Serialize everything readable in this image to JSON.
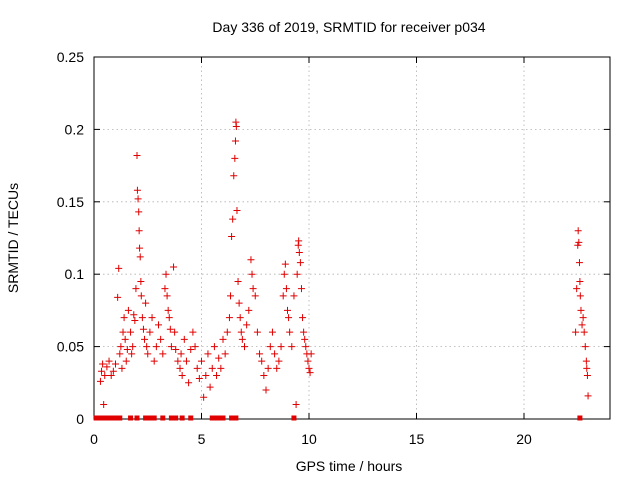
{
  "chart_data": {
    "type": "scatter",
    "title": "Day 336 of 2019, SRMTID for receiver p034",
    "xlabel": "GPS time / hours",
    "ylabel": "SRMTID / TECUs",
    "xlim": [
      0,
      24
    ],
    "ylim": [
      0,
      0.25
    ],
    "xticks": [
      0,
      5,
      10,
      15,
      20
    ],
    "xtick_labels": [
      "0",
      "5",
      "10",
      "15",
      "20"
    ],
    "yticks": [
      0,
      0.05,
      0.1,
      0.15,
      0.2,
      0.25
    ],
    "ytick_labels": [
      "0",
      "0.05",
      "0.1",
      "0.15",
      "0.2",
      "0.25"
    ],
    "grid": true,
    "marker": "plus",
    "color": "#e00000",
    "series": [
      {
        "name": "SRMTID",
        "points": [
          [
            0.3,
            0.026
          ],
          [
            0.35,
            0.033
          ],
          [
            0.4,
            0.038
          ],
          [
            0.45,
            0.01
          ],
          [
            0.5,
            0.03
          ],
          [
            0.6,
            0.036
          ],
          [
            0.7,
            0.04
          ],
          [
            0.8,
            0.03
          ],
          [
            0.9,
            0.033
          ],
          [
            1.0,
            0.038
          ],
          [
            1.1,
            0.084
          ],
          [
            1.15,
            0.104
          ],
          [
            1.2,
            0.045
          ],
          [
            1.25,
            0.05
          ],
          [
            1.3,
            0.035
          ],
          [
            1.35,
            0.06
          ],
          [
            1.4,
            0.07
          ],
          [
            1.45,
            0.055
          ],
          [
            1.5,
            0.04
          ],
          [
            1.55,
            0.048
          ],
          [
            1.6,
            0.075
          ],
          [
            1.7,
            0.06
          ],
          [
            1.75,
            0.045
          ],
          [
            1.8,
            0.05
          ],
          [
            1.85,
            0.072
          ],
          [
            1.9,
            0.068
          ],
          [
            1.95,
            0.09
          ],
          [
            2.0,
            0.182
          ],
          [
            2.02,
            0.158
          ],
          [
            2.05,
            0.152
          ],
          [
            2.08,
            0.143
          ],
          [
            2.1,
            0.13
          ],
          [
            2.12,
            0.118
          ],
          [
            2.15,
            0.112
          ],
          [
            2.18,
            0.095
          ],
          [
            2.2,
            0.085
          ],
          [
            2.25,
            0.07
          ],
          [
            2.3,
            0.062
          ],
          [
            2.35,
            0.055
          ],
          [
            2.4,
            0.08
          ],
          [
            2.45,
            0.05
          ],
          [
            2.5,
            0.045
          ],
          [
            2.6,
            0.06
          ],
          [
            2.7,
            0.07
          ],
          [
            2.8,
            0.04
          ],
          [
            2.9,
            0.05
          ],
          [
            3.0,
            0.065
          ],
          [
            3.1,
            0.055
          ],
          [
            3.2,
            0.045
          ],
          [
            3.3,
            0.09
          ],
          [
            3.35,
            0.1
          ],
          [
            3.4,
            0.085
          ],
          [
            3.45,
            0.075
          ],
          [
            3.5,
            0.07
          ],
          [
            3.55,
            0.062
          ],
          [
            3.6,
            0.05
          ],
          [
            3.7,
            0.105
          ],
          [
            3.75,
            0.06
          ],
          [
            3.8,
            0.048
          ],
          [
            3.9,
            0.04
          ],
          [
            4.0,
            0.035
          ],
          [
            4.05,
            0.045
          ],
          [
            4.1,
            0.03
          ],
          [
            4.2,
            0.055
          ],
          [
            4.3,
            0.04
          ],
          [
            4.4,
            0.025
          ],
          [
            4.5,
            0.048
          ],
          [
            4.6,
            0.06
          ],
          [
            4.7,
            0.05
          ],
          [
            4.8,
            0.035
          ],
          [
            4.9,
            0.028
          ],
          [
            5.0,
            0.04
          ],
          [
            5.1,
            0.015
          ],
          [
            5.2,
            0.03
          ],
          [
            5.3,
            0.045
          ],
          [
            5.4,
            0.022
          ],
          [
            5.5,
            0.035
          ],
          [
            5.6,
            0.05
          ],
          [
            5.7,
            0.03
          ],
          [
            5.8,
            0.042
          ],
          [
            5.9,
            0.035
          ],
          [
            6.0,
            0.055
          ],
          [
            6.1,
            0.045
          ],
          [
            6.2,
            0.06
          ],
          [
            6.3,
            0.07
          ],
          [
            6.35,
            0.085
          ],
          [
            6.4,
            0.126
          ],
          [
            6.45,
            0.138
          ],
          [
            6.5,
            0.168
          ],
          [
            6.55,
            0.18
          ],
          [
            6.58,
            0.192
          ],
          [
            6.6,
            0.205
          ],
          [
            6.62,
            0.202
          ],
          [
            6.65,
            0.144
          ],
          [
            6.7,
            0.095
          ],
          [
            6.75,
            0.08
          ],
          [
            6.8,
            0.07
          ],
          [
            6.85,
            0.06
          ],
          [
            6.9,
            0.055
          ],
          [
            7.0,
            0.05
          ],
          [
            7.1,
            0.065
          ],
          [
            7.2,
            0.075
          ],
          [
            7.3,
            0.11
          ],
          [
            7.35,
            0.1
          ],
          [
            7.4,
            0.09
          ],
          [
            7.5,
            0.085
          ],
          [
            7.6,
            0.06
          ],
          [
            7.7,
            0.045
          ],
          [
            7.8,
            0.04
          ],
          [
            7.9,
            0.03
          ],
          [
            8.0,
            0.02
          ],
          [
            8.1,
            0.035
          ],
          [
            8.2,
            0.05
          ],
          [
            8.3,
            0.06
          ],
          [
            8.4,
            0.045
          ],
          [
            8.5,
            0.035
          ],
          [
            8.6,
            0.04
          ],
          [
            8.7,
            0.05
          ],
          [
            8.8,
            0.085
          ],
          [
            8.85,
            0.1
          ],
          [
            8.9,
            0.107
          ],
          [
            8.95,
            0.09
          ],
          [
            9.0,
            0.075
          ],
          [
            9.05,
            0.07
          ],
          [
            9.1,
            0.06
          ],
          [
            9.2,
            0.05
          ],
          [
            9.3,
            0.085
          ],
          [
            9.4,
            0.01
          ],
          [
            9.45,
            0.1
          ],
          [
            9.5,
            0.12
          ],
          [
            9.52,
            0.123
          ],
          [
            9.55,
            0.115
          ],
          [
            9.6,
            0.108
          ],
          [
            9.65,
            0.09
          ],
          [
            9.7,
            0.07
          ],
          [
            9.75,
            0.06
          ],
          [
            9.8,
            0.055
          ],
          [
            9.85,
            0.05
          ],
          [
            9.9,
            0.045
          ],
          [
            9.95,
            0.04
          ],
          [
            10.0,
            0.035
          ],
          [
            10.05,
            0.032
          ],
          [
            10.1,
            0.045
          ],
          [
            22.4,
            0.06
          ],
          [
            22.45,
            0.09
          ],
          [
            22.5,
            0.12
          ],
          [
            22.52,
            0.13
          ],
          [
            22.55,
            0.122
          ],
          [
            22.58,
            0.108
          ],
          [
            22.6,
            0.095
          ],
          [
            22.62,
            0.085
          ],
          [
            22.65,
            0.075
          ],
          [
            22.7,
            0.065
          ],
          [
            22.75,
            0.07
          ],
          [
            22.8,
            0.06
          ],
          [
            22.85,
            0.05
          ],
          [
            22.9,
            0.04
          ],
          [
            22.92,
            0.035
          ],
          [
            22.95,
            0.03
          ],
          [
            22.98,
            0.016
          ]
        ]
      }
    ],
    "zero_flags_x": [
      0.1,
      0.2,
      0.3,
      0.45,
      0.6,
      0.8,
      1.0,
      1.2,
      1.7,
      2.0,
      2.4,
      2.6,
      2.8,
      3.2,
      3.6,
      3.8,
      4.1,
      4.5,
      5.5,
      5.6,
      5.7,
      5.8,
      5.9,
      6.0,
      6.4,
      6.6,
      9.3,
      22.6
    ]
  }
}
